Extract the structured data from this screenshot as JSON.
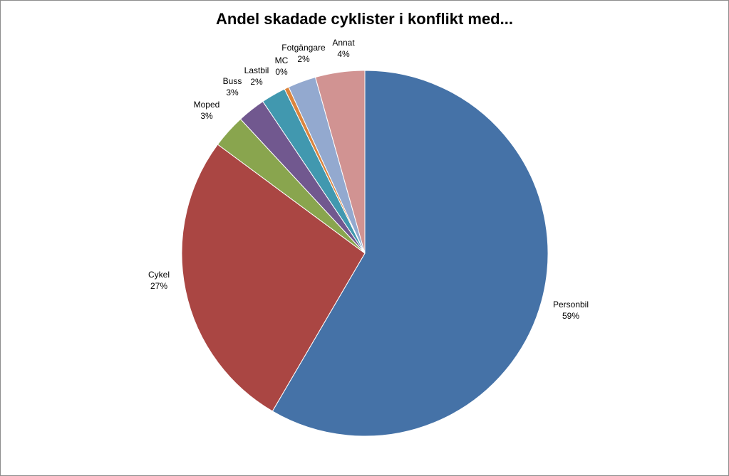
{
  "chart_data": {
    "type": "pie",
    "title": "Andel skadade cyklister i konflikt med...",
    "slices": [
      {
        "label": "Personbil",
        "value": 59,
        "value_label": "59%",
        "color": "#4572A7"
      },
      {
        "label": "Cykel",
        "value": 27,
        "value_label": "27%",
        "color": "#AA4643"
      },
      {
        "label": "Moped",
        "value": 3,
        "value_label": "3%",
        "color": "#89A54E"
      },
      {
        "label": "Buss",
        "value": 2.5,
        "value_label": "3%",
        "color": "#71588F"
      },
      {
        "label": "Lastbil",
        "value": 2.2,
        "value_label": "2%",
        "color": "#4198AF"
      },
      {
        "label": "MC",
        "value": 0.4,
        "value_label": "0%",
        "color": "#DB843D"
      },
      {
        "label": "Fotgängare",
        "value": 2.5,
        "value_label": "2%",
        "color": "#93A9CF"
      },
      {
        "label": "Annat",
        "value": 4.4,
        "value_label": "4%",
        "color": "#D19392"
      }
    ],
    "start_angle": "12 o'clock",
    "direction": "clockwise",
    "legend": "none",
    "data_labels": "outside"
  }
}
